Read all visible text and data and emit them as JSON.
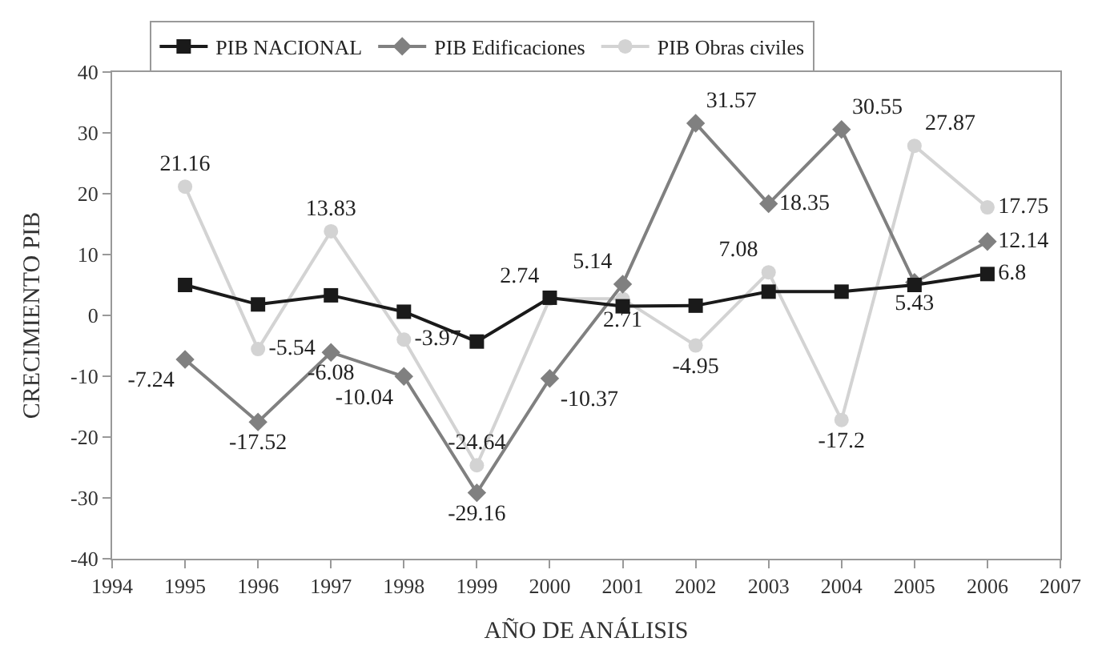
{
  "chart_data": {
    "type": "line",
    "xlabel": "AÑO DE ANÁLISIS",
    "ylabel": "CRECIMIENTO PIB",
    "x": [
      1995,
      1996,
      1997,
      1998,
      1999,
      2000,
      2001,
      2002,
      2003,
      2004,
      2005,
      2006
    ],
    "xlim": [
      1994,
      2007
    ],
    "xticks": [
      1994,
      1995,
      1996,
      1997,
      1998,
      1999,
      2000,
      2001,
      2002,
      2003,
      2004,
      2005,
      2006,
      2007
    ],
    "ylim": [
      -40,
      40
    ],
    "yticks": [
      -40,
      -30,
      -20,
      -10,
      0,
      10,
      20,
      30,
      40
    ],
    "legend": "top",
    "series": [
      {
        "name": "PIB NACIONAL",
        "color": "#1a1a1a",
        "marker": "square",
        "values": [
          5.0,
          1.8,
          3.3,
          0.6,
          -4.3,
          2.9,
          1.5,
          1.6,
          3.9,
          3.9,
          5.0,
          6.8
        ],
        "value_labels": [
          null,
          null,
          null,
          null,
          null,
          null,
          null,
          null,
          null,
          null,
          null,
          "6.8"
        ]
      },
      {
        "name": "PIB Edificaciones",
        "color": "#808080",
        "marker": "diamond",
        "values": [
          -7.24,
          -17.52,
          -6.08,
          -10.04,
          -29.16,
          -10.37,
          5.14,
          31.57,
          18.35,
          30.55,
          5.43,
          12.14
        ],
        "value_labels": [
          "-7.24",
          "-17.52",
          "-6.08",
          "-10.04",
          "-29.16",
          "-10.37",
          "5.14",
          "31.57",
          "18.35",
          "30.55",
          "5.43",
          "12.14"
        ]
      },
      {
        "name": "PIB Obras civiles",
        "color": "#d3d3d3",
        "marker": "circle",
        "values": [
          21.16,
          -5.54,
          13.83,
          -3.97,
          -24.64,
          2.74,
          2.71,
          -4.95,
          7.08,
          -17.2,
          27.87,
          17.75
        ],
        "value_labels": [
          "21.16",
          "-5.54",
          "13.83",
          "-3.97",
          "-24.64",
          "2.74",
          "2.71",
          "-4.95",
          "7.08",
          "-17.2",
          "27.87",
          "17.75"
        ]
      }
    ]
  }
}
